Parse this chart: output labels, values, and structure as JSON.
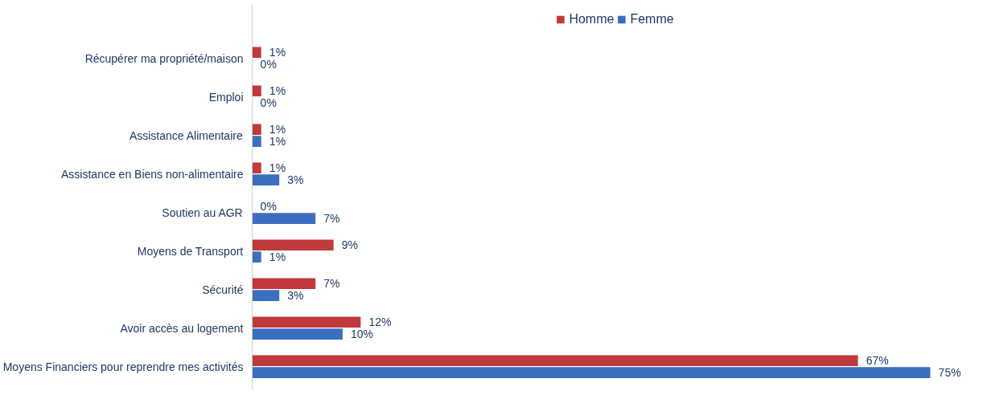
{
  "chart_data": {
    "type": "bar",
    "orientation": "horizontal",
    "categories": [
      "Récupérer ma propriété/maison",
      "Emploi",
      "Assistance Alimentaire",
      "Assistance en Biens non-alimentaire",
      "Soutien au AGR",
      "Moyens de Transport",
      "Sécurité",
      "Avoir accès au logement",
      "Moyens Financiers pour reprendre mes activités"
    ],
    "series": [
      {
        "name": "Homme",
        "color": "#c0393b",
        "values": [
          1,
          1,
          1,
          1,
          0,
          9,
          7,
          12,
          67
        ],
        "value_labels": [
          "1%",
          "1%",
          "1%",
          "1%",
          "0%",
          "9%",
          "7%",
          "12%",
          "67%"
        ]
      },
      {
        "name": "Femme",
        "color": "#3a6fc0",
        "values": [
          0,
          0,
          1,
          3,
          7,
          1,
          3,
          10,
          75
        ],
        "value_labels": [
          "0%",
          "0%",
          "1%",
          "3%",
          "7%",
          "1%",
          "3%",
          "10%",
          "75%"
        ]
      }
    ],
    "legend": "top",
    "grid": false
  }
}
